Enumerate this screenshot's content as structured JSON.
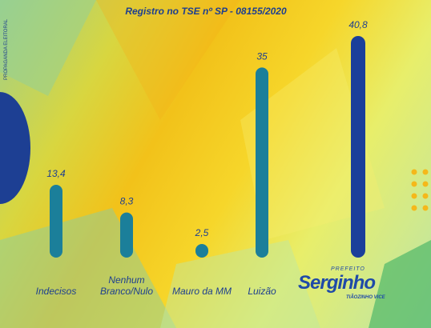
{
  "chart_data": {
    "type": "bar",
    "title": "Registro no TSE nº SP - 08155/2020",
    "side_note": "PROPAGANDA ELEITORAL",
    "categories": [
      "Indecisos",
      "Nenhum Branco/Nulo",
      "Mauro da MM",
      "Luizão",
      "Serginho"
    ],
    "values": [
      13.4,
      8.3,
      2.5,
      35,
      40.8
    ],
    "value_labels": [
      "13,4",
      "8,3",
      "2,5",
      "35",
      "40,8"
    ],
    "colors": [
      "#1b7f9a",
      "#1b7f9a",
      "#1b7f9a",
      "#1b7f9a",
      "#1b3f9a"
    ],
    "logo_top": "PREFEITO",
    "logo_bottom": "TIÃOZINHO VICE"
  }
}
